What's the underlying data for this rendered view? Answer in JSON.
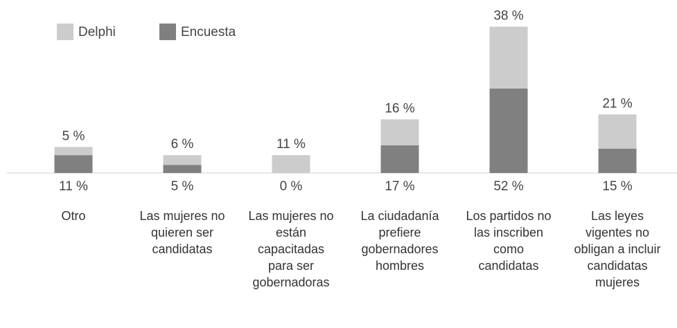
{
  "chart_data": {
    "type": "bar",
    "stacked": true,
    "categories": [
      "Otro",
      "Las mujeres no quieren ser candidatas",
      "Las mujeres no están capacitadas para ser gobernadoras",
      "La ciudadanía prefiere gobernadores hombres",
      "Los partidos no las inscriben como candidatas",
      "Las leyes vigentes no obligan a incluir candidatas mujeres"
    ],
    "series": [
      {
        "name": "Delphi",
        "color": "#cccccc",
        "values": [
          5,
          6,
          11,
          16,
          38,
          21
        ],
        "value_labels": [
          "5 %",
          "6 %",
          "11 %",
          "16 %",
          "38 %",
          "21 %"
        ]
      },
      {
        "name": "Encuesta",
        "color": "#808080",
        "values": [
          11,
          5,
          0,
          17,
          52,
          15
        ],
        "value_labels": [
          "11 %",
          "5 %",
          "0 %",
          "17 %",
          "52 %",
          "15 %"
        ]
      }
    ]
  }
}
